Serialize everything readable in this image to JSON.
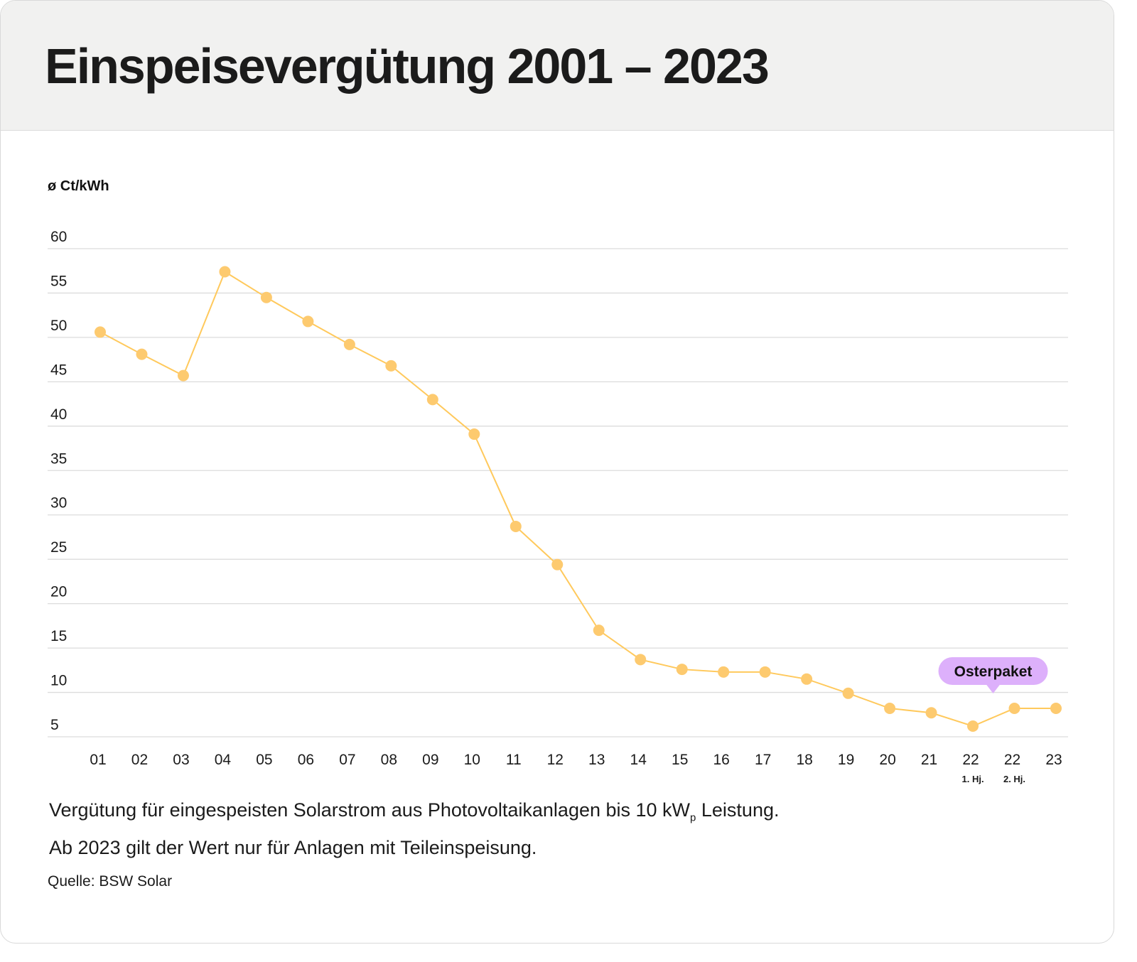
{
  "title": "Einspeisevergütung 2001 – 2023",
  "chart_data": {
    "type": "line",
    "title": "Einspeisevergütung 2001 – 2023",
    "ylabel": "ø Ct/kWh",
    "xlabel": "",
    "ylim": [
      5,
      60
    ],
    "yticks": [
      60,
      55,
      50,
      45,
      40,
      35,
      30,
      25,
      20,
      15,
      10,
      5
    ],
    "grid": true,
    "categories": [
      "01",
      "02",
      "03",
      "04",
      "05",
      "06",
      "07",
      "08",
      "09",
      "10",
      "11",
      "12",
      "13",
      "14",
      "15",
      "16",
      "17",
      "18",
      "19",
      "20",
      "21",
      "22",
      "22",
      "23"
    ],
    "category_sublabels": [
      "",
      "",
      "",
      "",
      "",
      "",
      "",
      "",
      "",
      "",
      "",
      "",
      "",
      "",
      "",
      "",
      "",
      "",
      "",
      "",
      "",
      "1. Hj.",
      "2. Hj.",
      ""
    ],
    "values": [
      50.6,
      48.1,
      45.7,
      57.4,
      54.5,
      51.8,
      49.2,
      46.8,
      43.0,
      39.1,
      28.7,
      24.4,
      17.0,
      13.7,
      12.6,
      12.3,
      12.3,
      11.5,
      9.9,
      8.2,
      7.7,
      6.2,
      8.2,
      8.2
    ],
    "line_color": "#ffc95c",
    "marker_color": "#fdca6f",
    "annotation": {
      "label": "Osterpaket",
      "category_index": 22,
      "color": "#ddb0fb"
    }
  },
  "caption": {
    "line1_pre": "Vergütung für eingespeisten Solarstrom aus Photovoltaikanlagen bis 10 kW",
    "line1_sub": "p",
    "line1_post": " Leistung.",
    "line2": "Ab 2023 gilt der Wert nur für Anlagen mit Teileinspeisung."
  },
  "source": "Quelle: BSW Solar"
}
